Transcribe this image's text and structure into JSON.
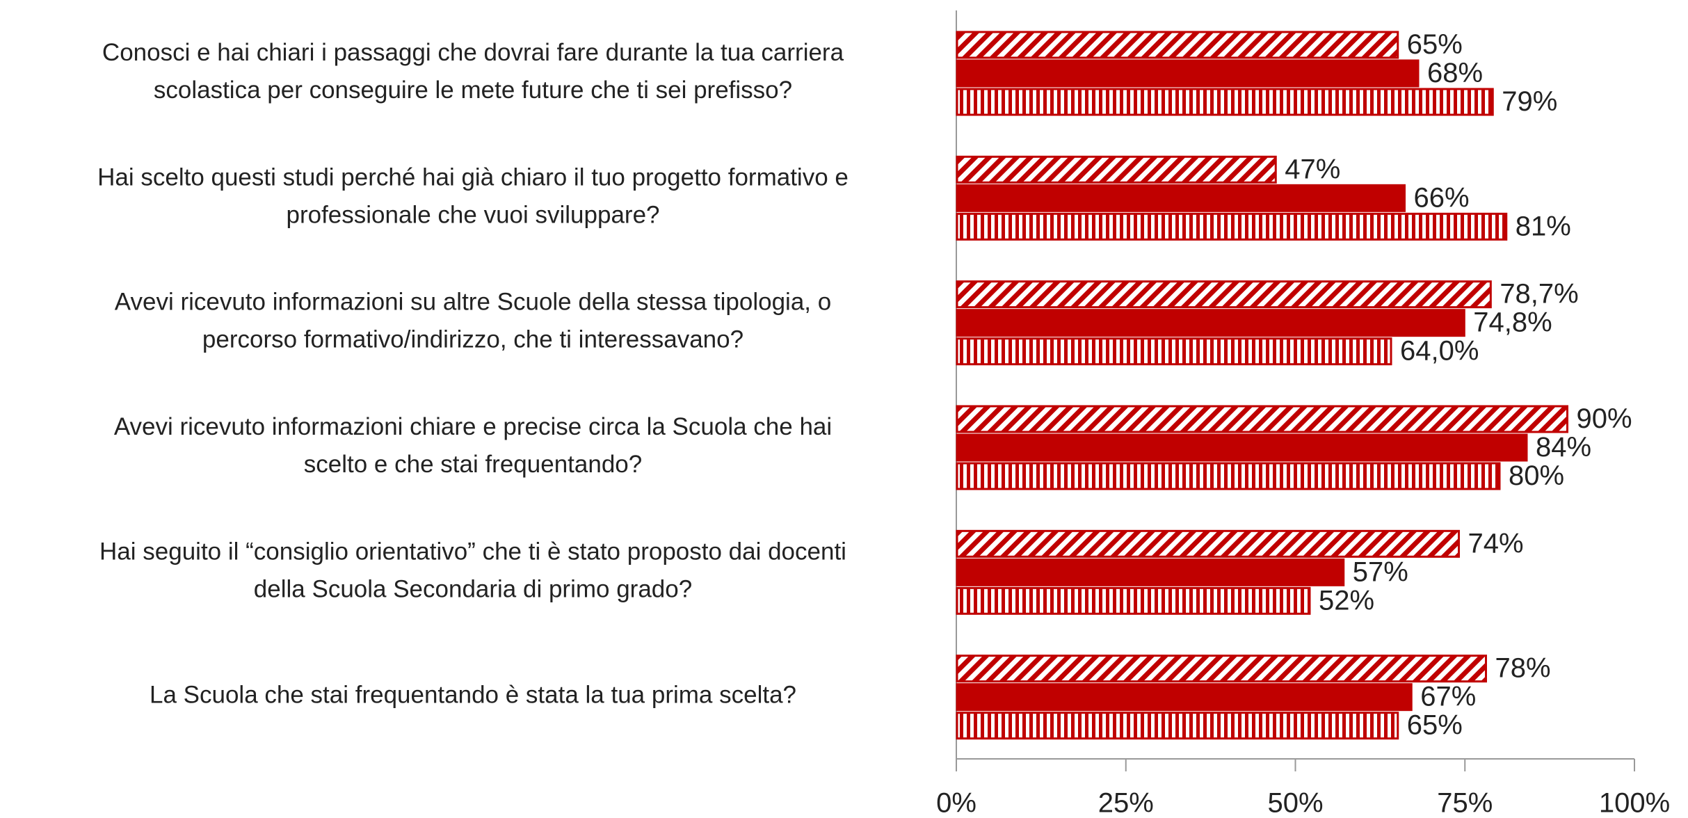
{
  "chart_data": {
    "type": "hbar",
    "categories": [
      [
        "Conosci e hai chiari i passaggi che dovrai fare durante la tua carriera",
        "scolastica per conseguire le mete future che ti sei prefisso?"
      ],
      [
        "Hai scelto questi studi perché hai già chiaro il tuo progetto formativo e",
        "professionale che vuoi sviluppare?"
      ],
      [
        "Avevi ricevuto informazioni su altre Scuole della stessa tipologia, o",
        "percorso formativo/indirizzo, che ti interessavano?"
      ],
      [
        "Avevi ricevuto informazioni chiare e precise circa la Scuola che hai",
        "scelto e che stai frequentando?"
      ],
      [
        "Hai seguito il “consiglio orientativo” che ti è stato proposto dai docenti",
        "della Scuola Secondaria di primo grado?"
      ],
      [
        "La Scuola che stai frequentando è stata la tua prima scelta?"
      ]
    ],
    "series": [
      {
        "color": "#c00000",
        "pattern": "diagonal",
        "values": [
          65,
          47,
          78.7,
          90,
          74,
          78
        ],
        "value_labels": [
          "65%",
          "47%",
          "78,7%",
          "90%",
          "74%",
          "78%"
        ]
      },
      {
        "color": "#c00000",
        "pattern": "solid",
        "values": [
          68,
          66,
          74.8,
          84,
          57,
          67
        ],
        "value_labels": [
          "68%",
          "66%",
          "74,8%",
          "84%",
          "57%",
          "67%"
        ]
      },
      {
        "color": "#c00000",
        "pattern": "vertical",
        "values": [
          79,
          81,
          64.0,
          80,
          52,
          65
        ],
        "value_labels": [
          "79%",
          "81%",
          "64,0%",
          "80%",
          "52%",
          "65%"
        ]
      }
    ],
    "xlim": [
      0,
      100
    ],
    "xticks": [
      {
        "value": 0,
        "label": "0%"
      },
      {
        "value": 25,
        "label": "25%"
      },
      {
        "value": 50,
        "label": "50%"
      },
      {
        "value": 75,
        "label": "75%"
      },
      {
        "value": 100,
        "label": "100%"
      }
    ]
  }
}
